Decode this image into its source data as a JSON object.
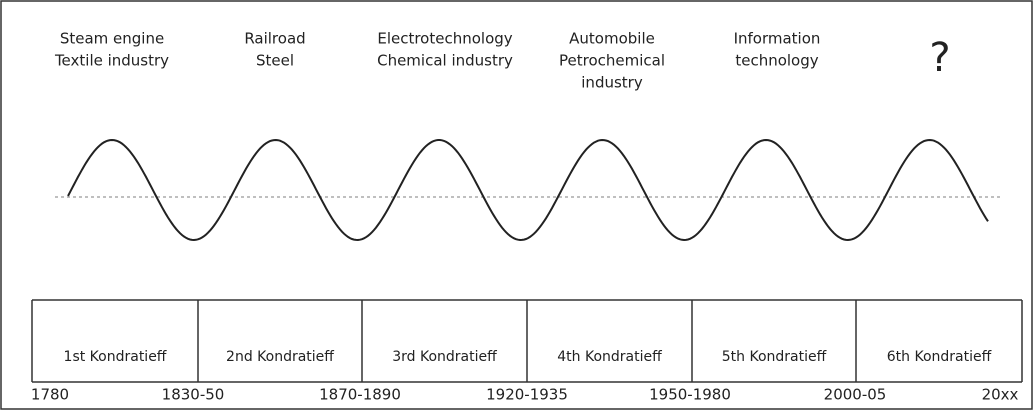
{
  "waves": [
    {
      "lines": [
        "Steam engine",
        "Textile industry"
      ]
    },
    {
      "lines": [
        "Railroad",
        "Steel"
      ]
    },
    {
      "lines": [
        "Electrotechnology",
        "Chemical industry"
      ]
    },
    {
      "lines": [
        "Automobile",
        "Petrochemical",
        "industry"
      ]
    },
    {
      "lines": [
        "Information",
        "technology"
      ]
    },
    {
      "lines": [
        "?"
      ]
    }
  ],
  "cycles": [
    "1st Kondratieff",
    "2nd Kondratieff",
    "3rd Kondratieff",
    "4th Kondratieff",
    "5th Kondratieff",
    "6th Kondratieff"
  ],
  "dates": [
    "1780",
    "1830-50",
    "1870-1890",
    "1920-1935",
    "1950-1980",
    "2000-05",
    "20xx"
  ]
}
